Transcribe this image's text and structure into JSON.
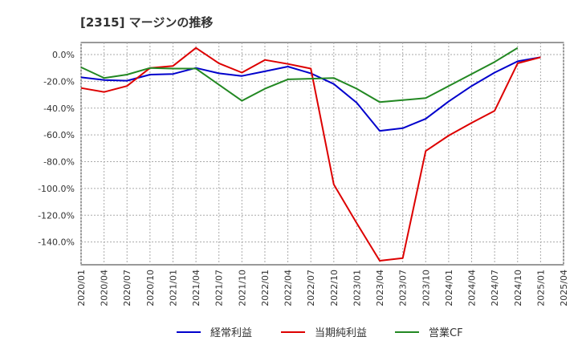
{
  "chart_data": {
    "type": "line",
    "title": "[2315]  マージンの推移",
    "xlabel": "",
    "ylabel": "",
    "x": [
      "2020/01",
      "2020/04",
      "2020/07",
      "2020/10",
      "2021/01",
      "2021/04",
      "2021/07",
      "2021/10",
      "2022/01",
      "2022/04",
      "2022/07",
      "2022/10",
      "2023/01",
      "2023/04",
      "2023/07",
      "2023/10",
      "2024/01",
      "2024/04",
      "2024/07",
      "2024/10",
      "2025/01",
      "2025/04"
    ],
    "y_ticks": [
      0,
      -20,
      -40,
      -60,
      -80,
      -100,
      -120,
      -140
    ],
    "y_tick_labels": [
      "0.0%",
      "-20.0%",
      "-40.0%",
      "-60.0%",
      "-80.0%",
      "-100.0%",
      "-120.0%",
      "-140.0%"
    ],
    "ylim": [
      -157,
      9
    ],
    "grid": true,
    "legend_position": "bottom",
    "series": [
      {
        "name": "経常利益",
        "color": "#0000cc",
        "values": [
          -17,
          -19,
          -19.5,
          -15,
          -14.5,
          -10,
          -14,
          -16,
          -12.5,
          -9,
          -14,
          -22,
          -36,
          -57,
          -55,
          -48,
          -35,
          -23.5,
          -13.5,
          -5,
          -2,
          null
        ]
      },
      {
        "name": "当期純利益",
        "color": "#dd0000",
        "values": [
          -25,
          -28,
          -23.5,
          -10,
          -8.5,
          5,
          -6.5,
          -13.5,
          -4,
          -7,
          -10.5,
          -97,
          -126,
          -154,
          -152,
          -72,
          -60.5,
          -51,
          -42,
          -6.5,
          -2,
          null
        ]
      },
      {
        "name": "営業CF",
        "color": "#228822",
        "values": [
          -9.5,
          -17.5,
          -15,
          -10,
          -10.5,
          -10.5,
          -22.5,
          -34.5,
          -25.5,
          -18.5,
          -18,
          -17.5,
          -25.5,
          -35.5,
          -34,
          -32.5,
          -23.5,
          -14.5,
          -5.5,
          5,
          null,
          null
        ]
      }
    ]
  }
}
